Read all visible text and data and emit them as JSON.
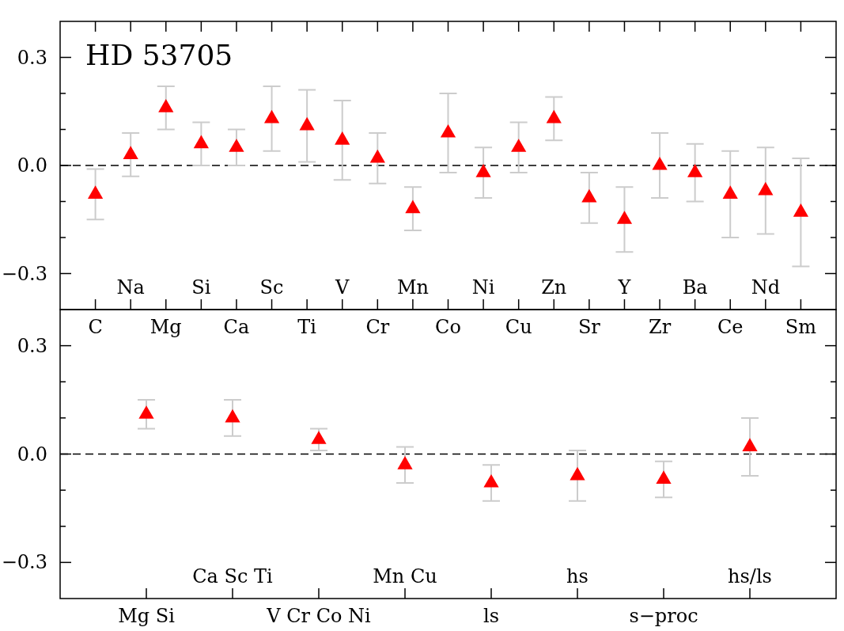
{
  "chart_data": [
    {
      "type": "scatter",
      "title": "HD 53705",
      "categories": [
        "C",
        "Na",
        "Mg",
        "Si",
        "Ca",
        "Sc",
        "Ti",
        "V",
        "Cr",
        "Mn",
        "Co",
        "Ni",
        "Cu",
        "Zn",
        "Sr",
        "Y",
        "Zr",
        "Ba",
        "Ce",
        "Nd",
        "Sm"
      ],
      "values": [
        -0.08,
        0.03,
        0.16,
        0.06,
        0.05,
        0.13,
        0.11,
        0.07,
        0.02,
        -0.12,
        0.09,
        -0.02,
        0.05,
        0.13,
        -0.09,
        -0.15,
        0.0,
        -0.02,
        -0.08,
        -0.07,
        -0.13
      ],
      "errors": [
        0.07,
        0.06,
        0.06,
        0.06,
        0.05,
        0.09,
        0.1,
        0.11,
        0.07,
        0.06,
        0.11,
        0.07,
        0.07,
        0.06,
        0.07,
        0.09,
        0.09,
        0.08,
        0.12,
        0.12,
        0.15
      ],
      "color": "#ff0000",
      "marker": "triangle",
      "ylim": [
        -0.4,
        0.4
      ],
      "yticks": [
        {
          "value": -0.3,
          "label": "−0.3"
        },
        {
          "value": -0.2,
          "label": null
        },
        {
          "value": -0.1,
          "label": null
        },
        {
          "value": 0,
          "label": "0.0"
        },
        {
          "value": 0.1,
          "label": null
        },
        {
          "value": 0.2,
          "label": null
        },
        0.3
      ],
      "ref_lines": [
        {
          "axis": "y",
          "value": 0,
          "label": null,
          "color": "#000000",
          "line_style": "dashed"
        }
      ]
    },
    {
      "type": "scatter",
      "categories": [
        "Mg Si",
        "Ca Sc Ti",
        "V Cr Co Ni",
        "Mn Cu",
        "ls",
        "hs",
        "s−proc",
        "hs/ls"
      ],
      "values": [
        0.11,
        0.1,
        0.04,
        -0.03,
        -0.08,
        -0.06,
        -0.07,
        0.02
      ],
      "errors": [
        0.04,
        0.05,
        0.03,
        0.05,
        0.05,
        0.07,
        0.05,
        0.08
      ],
      "color": "#ff0000",
      "marker": "triangle",
      "ylim": [
        -0.4,
        0.4
      ],
      "yticks": [
        {
          "value": -0.3,
          "label": "−0.3"
        },
        {
          "value": -0.2,
          "label": null
        },
        {
          "value": -0.1,
          "label": null
        },
        {
          "value": 0,
          "label": "0.0"
        },
        {
          "value": 0.1,
          "label": null
        },
        {
          "value": 0.2,
          "label": null
        },
        0.3
      ],
      "ref_lines": [
        {
          "axis": "y",
          "value": 0,
          "label": null,
          "color": "#000000",
          "line_style": "dashed"
        }
      ]
    }
  ]
}
